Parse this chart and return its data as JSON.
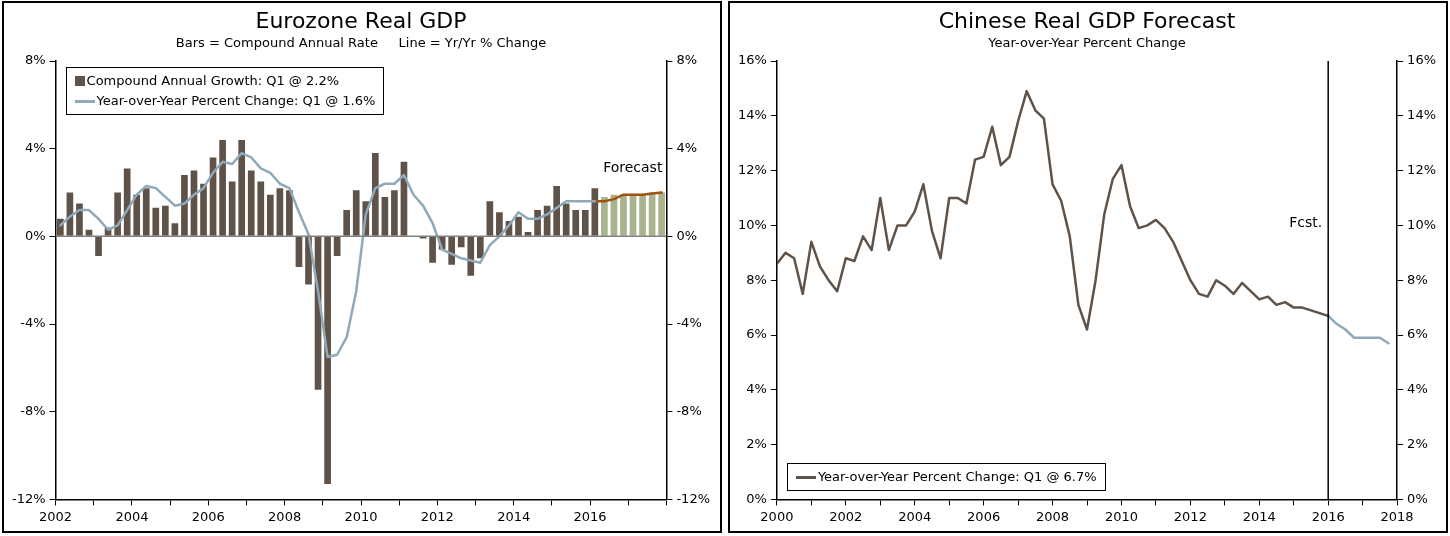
{
  "chart_data": [
    {
      "type": "bar",
      "title": "Eurozone Real GDP",
      "subtitle": "Bars = Compound Annual Rate     Line = Yr/Yr % Change",
      "x": [
        2002.125,
        2002.375,
        2002.625,
        2002.875,
        2003.125,
        2003.375,
        2003.625,
        2003.875,
        2004.125,
        2004.375,
        2004.625,
        2004.875,
        2005.125,
        2005.375,
        2005.625,
        2005.875,
        2006.125,
        2006.375,
        2006.625,
        2006.875,
        2007.125,
        2007.375,
        2007.625,
        2007.875,
        2008.125,
        2008.375,
        2008.625,
        2008.875,
        2009.125,
        2009.375,
        2009.625,
        2009.875,
        2010.125,
        2010.375,
        2010.625,
        2010.875,
        2011.125,
        2011.375,
        2011.625,
        2011.875,
        2012.125,
        2012.375,
        2012.625,
        2012.875,
        2013.125,
        2013.375,
        2013.625,
        2013.875,
        2014.125,
        2014.375,
        2014.625,
        2014.875,
        2015.125,
        2015.375,
        2015.625,
        2015.875,
        2016.125
      ],
      "series": [
        {
          "name": "Compound Annual Growth: Q1 @ 2.2%",
          "color": "#5f5349",
          "values": [
            0.8,
            2.0,
            1.5,
            0.3,
            -0.9,
            0.4,
            2.0,
            3.1,
            1.9,
            2.2,
            1.3,
            1.4,
            0.6,
            2.8,
            3.0,
            2.4,
            3.6,
            4.4,
            2.5,
            4.4,
            3.0,
            2.5,
            1.9,
            2.2,
            2.1,
            -1.4,
            -2.2,
            -7.0,
            -11.3,
            -0.9,
            1.2,
            2.1,
            1.6,
            3.8,
            1.8,
            2.1,
            3.4,
            0.0,
            -0.1,
            -1.2,
            -0.6,
            -1.3,
            -0.5,
            -1.8,
            -1.0,
            1.6,
            1.1,
            0.7,
            0.9,
            0.2,
            1.2,
            1.4,
            2.3,
            1.5,
            1.2,
            1.2,
            2.2
          ]
        },
        {
          "color": "#a9b48e",
          "x": [
            2016.375,
            2016.625,
            2016.875,
            2017.125,
            2017.375,
            2017.625,
            2017.875
          ],
          "values": [
            1.8,
            1.9,
            1.9,
            1.9,
            1.9,
            2.0,
            2.0
          ]
        },
        {
          "type": "line",
          "name": "Year-over-Year Percent Change: Q1 @ 1.6%",
          "color": "#8fa9b9",
          "values": [
            0.5,
            0.9,
            1.2,
            1.2,
            0.8,
            0.3,
            0.5,
            1.2,
            1.9,
            2.3,
            2.2,
            1.8,
            1.4,
            1.5,
            1.9,
            2.2,
            2.9,
            3.4,
            3.3,
            3.8,
            3.6,
            3.1,
            2.9,
            2.4,
            2.2,
            1.1,
            0.1,
            -2.5,
            -5.5,
            -5.4,
            -4.6,
            -2.5,
            1.0,
            2.2,
            2.4,
            2.4,
            2.8,
            1.9,
            1.4,
            0.6,
            -0.6,
            -0.8,
            -1.0,
            -1.1,
            -1.2,
            -0.4,
            0.0,
            0.5,
            1.1,
            0.8,
            0.8,
            1.0,
            1.3,
            1.6,
            1.6,
            1.6,
            1.6
          ]
        },
        {
          "type": "line",
          "color": "#a0520f",
          "x": [
            2016.125,
            2016.375,
            2016.625,
            2016.875,
            2017.125,
            2017.375,
            2017.625,
            2017.875
          ],
          "values": [
            1.6,
            1.6,
            1.7,
            1.9,
            1.9,
            1.9,
            1.95,
            2.0
          ]
        }
      ],
      "xlim": [
        2002,
        2018
      ],
      "xticks": [
        {
          "value": 2002,
          "label": "2002"
        },
        {
          "value": 2003,
          "label": null
        },
        {
          "value": 2004,
          "label": "2004"
        },
        {
          "value": 2005,
          "label": null
        },
        {
          "value": 2006,
          "label": "2006"
        },
        {
          "value": 2007,
          "label": null
        },
        {
          "value": 2008,
          "label": "2008"
        },
        {
          "value": 2009,
          "label": null
        },
        {
          "value": 2010,
          "label": "2010"
        },
        {
          "value": 2011,
          "label": null
        },
        {
          "value": 2012,
          "label": "2012"
        },
        {
          "value": 2013,
          "label": null
        },
        {
          "value": 2014,
          "label": "2014"
        },
        {
          "value": 2015,
          "label": null
        },
        {
          "value": 2016,
          "label": "2016"
        },
        {
          "value": 2017,
          "label": null
        },
        {
          "value": 2018,
          "label": null
        }
      ],
      "ylim": [
        -12,
        8
      ],
      "yticks": [
        {
          "value": -12,
          "label": "-12%"
        },
        {
          "value": -8,
          "label": "-8%"
        },
        {
          "value": -4,
          "label": "-4%"
        },
        {
          "value": 0,
          "label": "0%"
        },
        {
          "value": 4,
          "label": "4%"
        },
        {
          "value": 8,
          "label": "8%"
        }
      ],
      "y2lim": [
        -12,
        8
      ],
      "y2ticks": [
        {
          "value": -12,
          "label": "-12%"
        },
        {
          "value": -8,
          "label": "-8%"
        },
        {
          "value": -4,
          "label": "-4%"
        },
        {
          "value": 0,
          "label": "0%"
        },
        {
          "value": 4,
          "label": "4%"
        },
        {
          "value": 8,
          "label": "8%"
        }
      ],
      "ref_lines": [
        {
          "axis": "y",
          "value": 0,
          "color": "#808080"
        }
      ],
      "annotations": [
        "Forecast"
      ],
      "legend": "top left",
      "marker": "none"
    },
    {
      "type": "line",
      "title": "Chinese Real GDP Forecast",
      "subtitle": "Year-over-Year Percent Change",
      "series": [
        {
          "name": "Year-over-Year Percent Change: Q1 @ 6.7%",
          "color": "#5f5349",
          "x": [
            2000,
            2000.25,
            2000.5,
            2000.75,
            2001,
            2001.25,
            2001.5,
            2001.75,
            2002,
            2002.25,
            2002.5,
            2002.75,
            2003,
            2003.25,
            2003.5,
            2003.75,
            2004,
            2004.25,
            2004.5,
            2004.75,
            2005,
            2005.25,
            2005.5,
            2005.75,
            2006,
            2006.25,
            2006.5,
            2006.75,
            2007,
            2007.25,
            2007.5,
            2007.75,
            2008,
            2008.25,
            2008.5,
            2008.75,
            2009,
            2009.25,
            2009.5,
            2009.75,
            2010,
            2010.25,
            2010.5,
            2010.75,
            2011,
            2011.25,
            2011.5,
            2011.75,
            2012,
            2012.25,
            2012.5,
            2012.75,
            2013,
            2013.25,
            2013.5,
            2013.75,
            2014,
            2014.25,
            2014.5,
            2014.75,
            2015,
            2015.25,
            2015.5,
            2015.75,
            2016
          ],
          "values": [
            8.6,
            9.0,
            8.8,
            7.5,
            9.4,
            8.5,
            8.0,
            7.6,
            8.8,
            8.7,
            9.6,
            9.1,
            11.0,
            9.1,
            10.0,
            10.0,
            10.5,
            11.5,
            9.8,
            8.8,
            11.0,
            11.0,
            10.8,
            12.4,
            12.5,
            13.6,
            12.2,
            12.5,
            13.8,
            14.9,
            14.2,
            13.9,
            11.5,
            10.9,
            9.6,
            7.1,
            6.2,
            8.0,
            10.4,
            11.7,
            12.2,
            10.7,
            9.9,
            10.0,
            10.2,
            9.9,
            9.4,
            8.7,
            8.0,
            7.5,
            7.4,
            8.0,
            7.8,
            7.5,
            7.9,
            7.6,
            7.3,
            7.4,
            7.1,
            7.2,
            7.0,
            7.0,
            6.9,
            6.8,
            6.7
          ]
        },
        {
          "color": "#8fa9b9",
          "x": [
            2016,
            2016.25,
            2016.5,
            2016.75,
            2017,
            2017.25,
            2017.5,
            2017.75
          ],
          "values": [
            6.7,
            6.4,
            6.2,
            5.9,
            5.9,
            5.9,
            5.9,
            5.7
          ]
        }
      ],
      "xlim": [
        2000,
        2018
      ],
      "xticks": [
        {
          "value": 2000,
          "label": "2000"
        },
        {
          "value": 2001,
          "label": null
        },
        {
          "value": 2002,
          "label": "2002"
        },
        {
          "value": 2003,
          "label": null
        },
        {
          "value": 2004,
          "label": "2004"
        },
        {
          "value": 2005,
          "label": null
        },
        {
          "value": 2006,
          "label": "2006"
        },
        {
          "value": 2007,
          "label": null
        },
        {
          "value": 2008,
          "label": "2008"
        },
        {
          "value": 2009,
          "label": null
        },
        {
          "value": 2010,
          "label": "2010"
        },
        {
          "value": 2011,
          "label": null
        },
        {
          "value": 2012,
          "label": "2012"
        },
        {
          "value": 2013,
          "label": null
        },
        {
          "value": 2014,
          "label": "2014"
        },
        {
          "value": 2015,
          "label": null
        },
        {
          "value": 2016,
          "label": "2016"
        },
        {
          "value": 2017,
          "label": null
        },
        {
          "value": 2018,
          "label": "2018"
        }
      ],
      "ylim": [
        0,
        16
      ],
      "yticks": [
        {
          "value": 0,
          "label": "0%"
        },
        {
          "value": 2,
          "label": "2%"
        },
        {
          "value": 4,
          "label": "4%"
        },
        {
          "value": 6,
          "label": "6%"
        },
        {
          "value": 8,
          "label": "8%"
        },
        {
          "value": 10,
          "label": "10%"
        },
        {
          "value": 12,
          "label": "12%"
        },
        {
          "value": 14,
          "label": "14%"
        },
        {
          "value": 16,
          "label": "16%"
        }
      ],
      "y2lim": [
        0,
        16
      ],
      "y2ticks": [
        {
          "value": 0,
          "label": "0%"
        },
        {
          "value": 2,
          "label": "2%"
        },
        {
          "value": 4,
          "label": "4%"
        },
        {
          "value": 6,
          "label": "6%"
        },
        {
          "value": 8,
          "label": "8%"
        },
        {
          "value": 10,
          "label": "10%"
        },
        {
          "value": 12,
          "label": "12%"
        },
        {
          "value": 14,
          "label": "14%"
        },
        {
          "value": 16,
          "label": "16%"
        }
      ],
      "ref_lines": [
        {
          "axis": "x",
          "value": 2016,
          "label": "Fcst.",
          "color": "#000000"
        }
      ],
      "legend": "bottom left",
      "marker": "none"
    }
  ]
}
